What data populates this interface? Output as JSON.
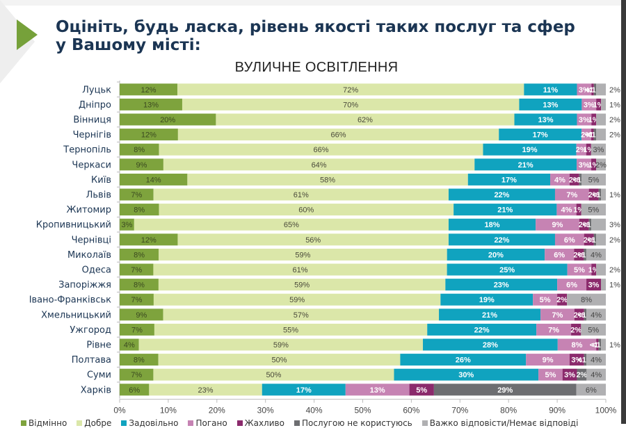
{
  "header": {
    "title": "Оцініть, будь ласка, рівень якості таких послуг та сфер у Вашому місті:",
    "subtitle": "ВУЛИЧНЕ ОСВІТЛЕННЯ"
  },
  "chart_data": {
    "type": "bar",
    "orientation": "horizontal",
    "stacked": true,
    "title": "ВУЛИЧНЕ ОСВІТЛЕННЯ",
    "xlabel": "",
    "ylabel": "",
    "xlim": [
      0,
      100
    ],
    "x_ticks": [
      "0%",
      "10%",
      "20%",
      "30%",
      "40%",
      "50%",
      "60%",
      "70%",
      "80%",
      "90%",
      "100%"
    ],
    "grid": false,
    "legend_position": "bottom",
    "categories": [
      "Луцьк",
      "Дніпро",
      "Вінниця",
      "Чернігів",
      "Тернопіль",
      "Черкаси",
      "Київ",
      "Львів",
      "Житомир",
      "Кропивницький",
      "Чернівці",
      "Миколаїв",
      "Одеса",
      "Запоріжжя",
      "Івано-Франківськ",
      "Хмельницький",
      "Ужгород",
      "Рівне",
      "Полтава",
      "Суми",
      "Харків"
    ],
    "series": [
      {
        "name": "Відмінно",
        "color": "#7ea33d",
        "label_color": "#3b4a20",
        "values": [
          12,
          13,
          20,
          12,
          8,
          9,
          14,
          7,
          8,
          3,
          12,
          8,
          7,
          8,
          7,
          9,
          7,
          4,
          8,
          7,
          6
        ],
        "labels": [
          "12%",
          "13%",
          "20%",
          "12%",
          "8%",
          "9%",
          "14%",
          "7%",
          "8%",
          "3%",
          "12%",
          "8%",
          "7%",
          "8%",
          "7%",
          "9%",
          "7%",
          "4%",
          "8%",
          "7%",
          "6%"
        ]
      },
      {
        "name": "Добре",
        "color": "#dbe7a9",
        "label_color": "#4a4a3a",
        "values": [
          72,
          70,
          62,
          66,
          66,
          64,
          58,
          61,
          60,
          65,
          56,
          59,
          61,
          59,
          59,
          57,
          55,
          59,
          50,
          50,
          23
        ],
        "labels": [
          "72%",
          "70%",
          "62%",
          "66%",
          "66%",
          "64%",
          "58%",
          "61%",
          "60%",
          "65%",
          "56%",
          "59%",
          "61%",
          "59%",
          "59%",
          "57%",
          "55%",
          "59%",
          "50%",
          "50%",
          "23%"
        ]
      },
      {
        "name": "Задовільно",
        "color": "#10a3bf",
        "label_color": "#ffffff",
        "values": [
          11,
          13,
          13,
          17,
          19,
          21,
          17,
          22,
          21,
          18,
          22,
          20,
          25,
          23,
          19,
          21,
          22,
          28,
          26,
          30,
          17
        ],
        "labels": [
          "11%",
          "13%",
          "13%",
          "17%",
          "19%",
          "21%",
          "17%",
          "22%",
          "21%",
          "18%",
          "22%",
          "20%",
          "25%",
          "23%",
          "19%",
          "21%",
          "22%",
          "28%",
          "26%",
          "30%",
          "17%"
        ]
      },
      {
        "name": "Погано",
        "color": "#c683b3",
        "label_color": "#ffffff",
        "values": [
          3,
          3,
          3,
          2,
          2,
          3,
          4,
          7,
          4,
          9,
          6,
          6,
          5,
          6,
          5,
          7,
          7,
          8,
          9,
          5,
          13
        ],
        "labels": [
          "3%",
          "3%",
          "3%",
          "2%",
          "2%",
          "3%",
          "4%",
          "7%",
          "4%",
          "9%",
          "6%",
          "6%",
          "5%",
          "6%",
          "5%",
          "7%",
          "7%",
          "8%",
          "9%",
          "5%",
          "13%"
        ]
      },
      {
        "name": "Жахливо",
        "color": "#8b2a6c",
        "label_color": "#ffffff",
        "values": [
          0.5,
          1,
          1,
          0.5,
          1,
          1,
          2,
          2,
          1,
          2,
          2,
          2,
          1,
          3,
          2,
          2,
          2,
          0.5,
          3,
          3,
          5
        ],
        "labels": [
          "<1%",
          "1%",
          "1%",
          "<1%",
          "1%",
          "1%",
          "2%",
          "2%",
          "1%",
          "2%",
          "2%",
          "2%",
          "1%",
          "3%",
          "2%",
          "2%",
          "2%",
          "<1%",
          "3%",
          "3%",
          "5%"
        ]
      },
      {
        "name": "Послугою не користуюсь",
        "color": "#6d6e71",
        "label_color": "#ffffff",
        "values": [
          0.5,
          0,
          0,
          0.5,
          0,
          0,
          0.5,
          0.5,
          0,
          0.5,
          0.5,
          0.5,
          0,
          0,
          0,
          0.5,
          0,
          0.5,
          0.5,
          2,
          29
        ],
        "labels": [
          "<1%",
          "",
          "",
          "<1%",
          "",
          "",
          "<1%",
          "<1%",
          "",
          "<1%",
          "<1%",
          "<1%",
          "",
          "",
          "",
          "<1%",
          "",
          "<1%",
          "<1%",
          "2%",
          "29%"
        ]
      },
      {
        "name": "Важко відповісти/Немає відповіді",
        "color": "#b0b0b2",
        "label_color": "#444444",
        "values": [
          2,
          1,
          2,
          2,
          3,
          2,
          5,
          1,
          5,
          3,
          2,
          4,
          2,
          1,
          8,
          4,
          5,
          1,
          4,
          4,
          6
        ],
        "labels": [
          "2%",
          "1%",
          "2%",
          "2%",
          "3%",
          "2%",
          "5%",
          "1%",
          "5%",
          "3%",
          "2%",
          "4%",
          "2%",
          "1%",
          "8%",
          "4%",
          "5%",
          "1%",
          "4%",
          "4%",
          "6%"
        ],
        "label_outside": [
          true,
          true,
          true,
          true,
          false,
          false,
          false,
          true,
          false,
          true,
          true,
          false,
          true,
          true,
          false,
          false,
          false,
          true,
          false,
          false,
          false
        ]
      }
    ]
  },
  "legend": {
    "items": [
      {
        "label": "Відмінно",
        "color": "#7ea33d"
      },
      {
        "label": "Добре",
        "color": "#dbe7a9"
      },
      {
        "label": "Задовільно",
        "color": "#10a3bf"
      },
      {
        "label": "Погано",
        "color": "#c683b3"
      },
      {
        "label": "Жахливо",
        "color": "#8b2a6c"
      },
      {
        "label": "Послугою не користуюсь",
        "color": "#6d6e71"
      },
      {
        "label": "Важко відповісти/Немає відповіді",
        "color": "#b0b0b2"
      }
    ]
  }
}
